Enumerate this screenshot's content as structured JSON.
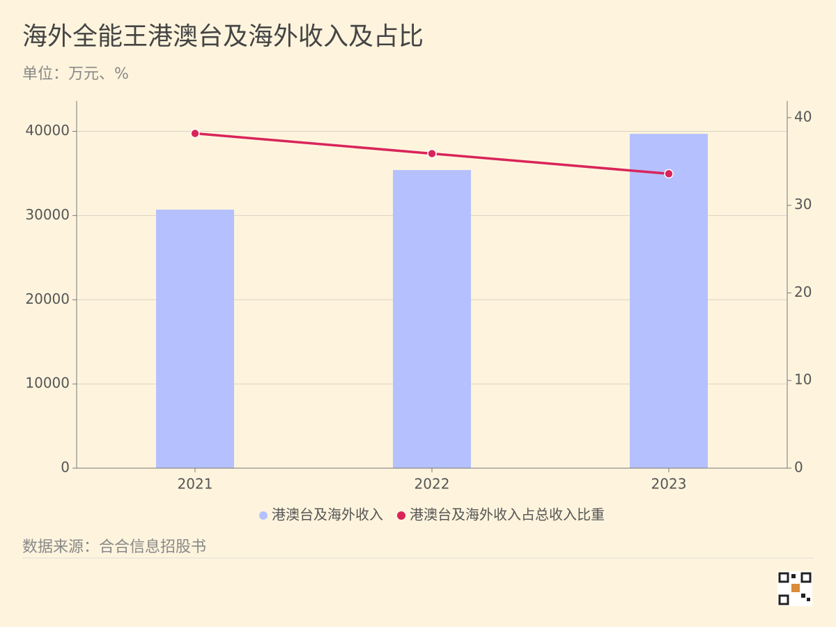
{
  "chart_data": {
    "type": "bar",
    "title": "海外全能王港澳台及海外收入及占比",
    "subtitle": "单位：万元、%",
    "source": "数据来源：合合信息招股书",
    "categories": [
      "2021",
      "2022",
      "2023"
    ],
    "series": [
      {
        "name": "港澳台及海外收入",
        "type": "bar",
        "color": "#b5c0fe",
        "values": [
          30700,
          35400,
          39700
        ]
      },
      {
        "name": "港澳台及海外收入占总收入比重",
        "type": "line",
        "axis": "y2",
        "color": "#d9245a",
        "values": [
          38.2,
          35.9,
          33.6
        ]
      }
    ],
    "ylim": [
      0,
      43600
    ],
    "yticks": [
      0,
      10000,
      20000,
      30000,
      40000
    ],
    "y2lim": [
      0,
      41.9
    ],
    "y2ticks": [
      0,
      10,
      20,
      30,
      40
    ],
    "grid": true
  }
}
